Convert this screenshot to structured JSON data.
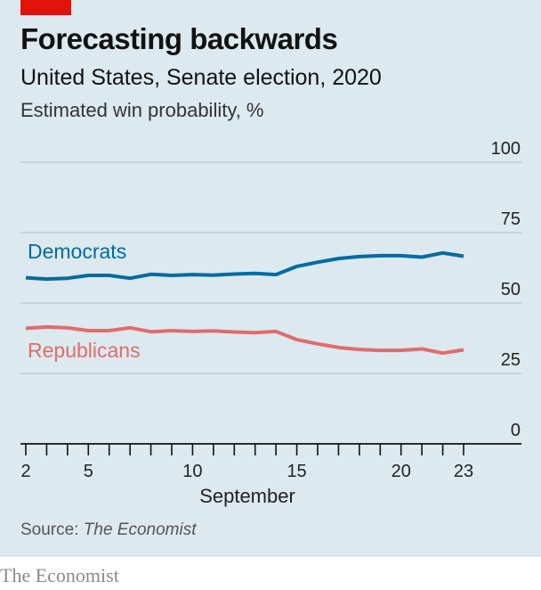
{
  "header": {
    "title": "Forecasting backwards",
    "subtitle": "United States, Senate election, 2020",
    "unit": "Estimated win probability, %"
  },
  "footer": {
    "source_prefix": "Source: ",
    "source_name": "The Economist",
    "brand": "The Economist"
  },
  "colors": {
    "accent": "#e3120b",
    "democrats": "#006ba2",
    "republicans": "#e06c6c",
    "background": "#dce9ef",
    "gridline": "#b7c6cf"
  },
  "chart_data": {
    "type": "line",
    "title": "Forecasting backwards",
    "subtitle": "United States, Senate election, 2020",
    "ylabel": "Estimated win probability, %",
    "xlabel": "September",
    "x": [
      2,
      3,
      4,
      5,
      6,
      7,
      8,
      9,
      10,
      11,
      12,
      13,
      14,
      15,
      16,
      17,
      18,
      19,
      20,
      21,
      22,
      23
    ],
    "xlim": [
      2,
      23
    ],
    "ylim": [
      0,
      100
    ],
    "x_ticks": [
      2,
      3,
      4,
      5,
      6,
      7,
      8,
      9,
      10,
      11,
      12,
      13,
      14,
      15,
      16,
      17,
      18,
      19,
      20,
      21,
      22,
      23
    ],
    "x_tick_labels": [
      {
        "x": 2,
        "label": "2"
      },
      {
        "x": 5,
        "label": "5"
      },
      {
        "x": 10,
        "label": "10"
      },
      {
        "x": 15,
        "label": "15"
      },
      {
        "x": 20,
        "label": "20"
      },
      {
        "x": 23,
        "label": "23"
      }
    ],
    "y_ticks": [
      0,
      25,
      50,
      75,
      100
    ],
    "grid": true,
    "series": [
      {
        "name": "Democrats",
        "color": "#006ba2",
        "values": [
          59,
          58.5,
          58.8,
          59.8,
          59.8,
          58.8,
          60.2,
          59.8,
          60.1,
          59.9,
          60.3,
          60.5,
          60.1,
          63,
          64.5,
          65.8,
          66.5,
          66.8,
          66.8,
          66.3,
          67.8,
          66.6
        ]
      },
      {
        "name": "Republicans",
        "color": "#e06c6c",
        "values": [
          41,
          41.5,
          41.2,
          40.2,
          40.2,
          41.2,
          39.8,
          40.2,
          39.9,
          40.1,
          39.7,
          39.5,
          39.9,
          37,
          35.5,
          34.2,
          33.5,
          33.2,
          33.2,
          33.7,
          32.2,
          33.4
        ]
      }
    ]
  }
}
